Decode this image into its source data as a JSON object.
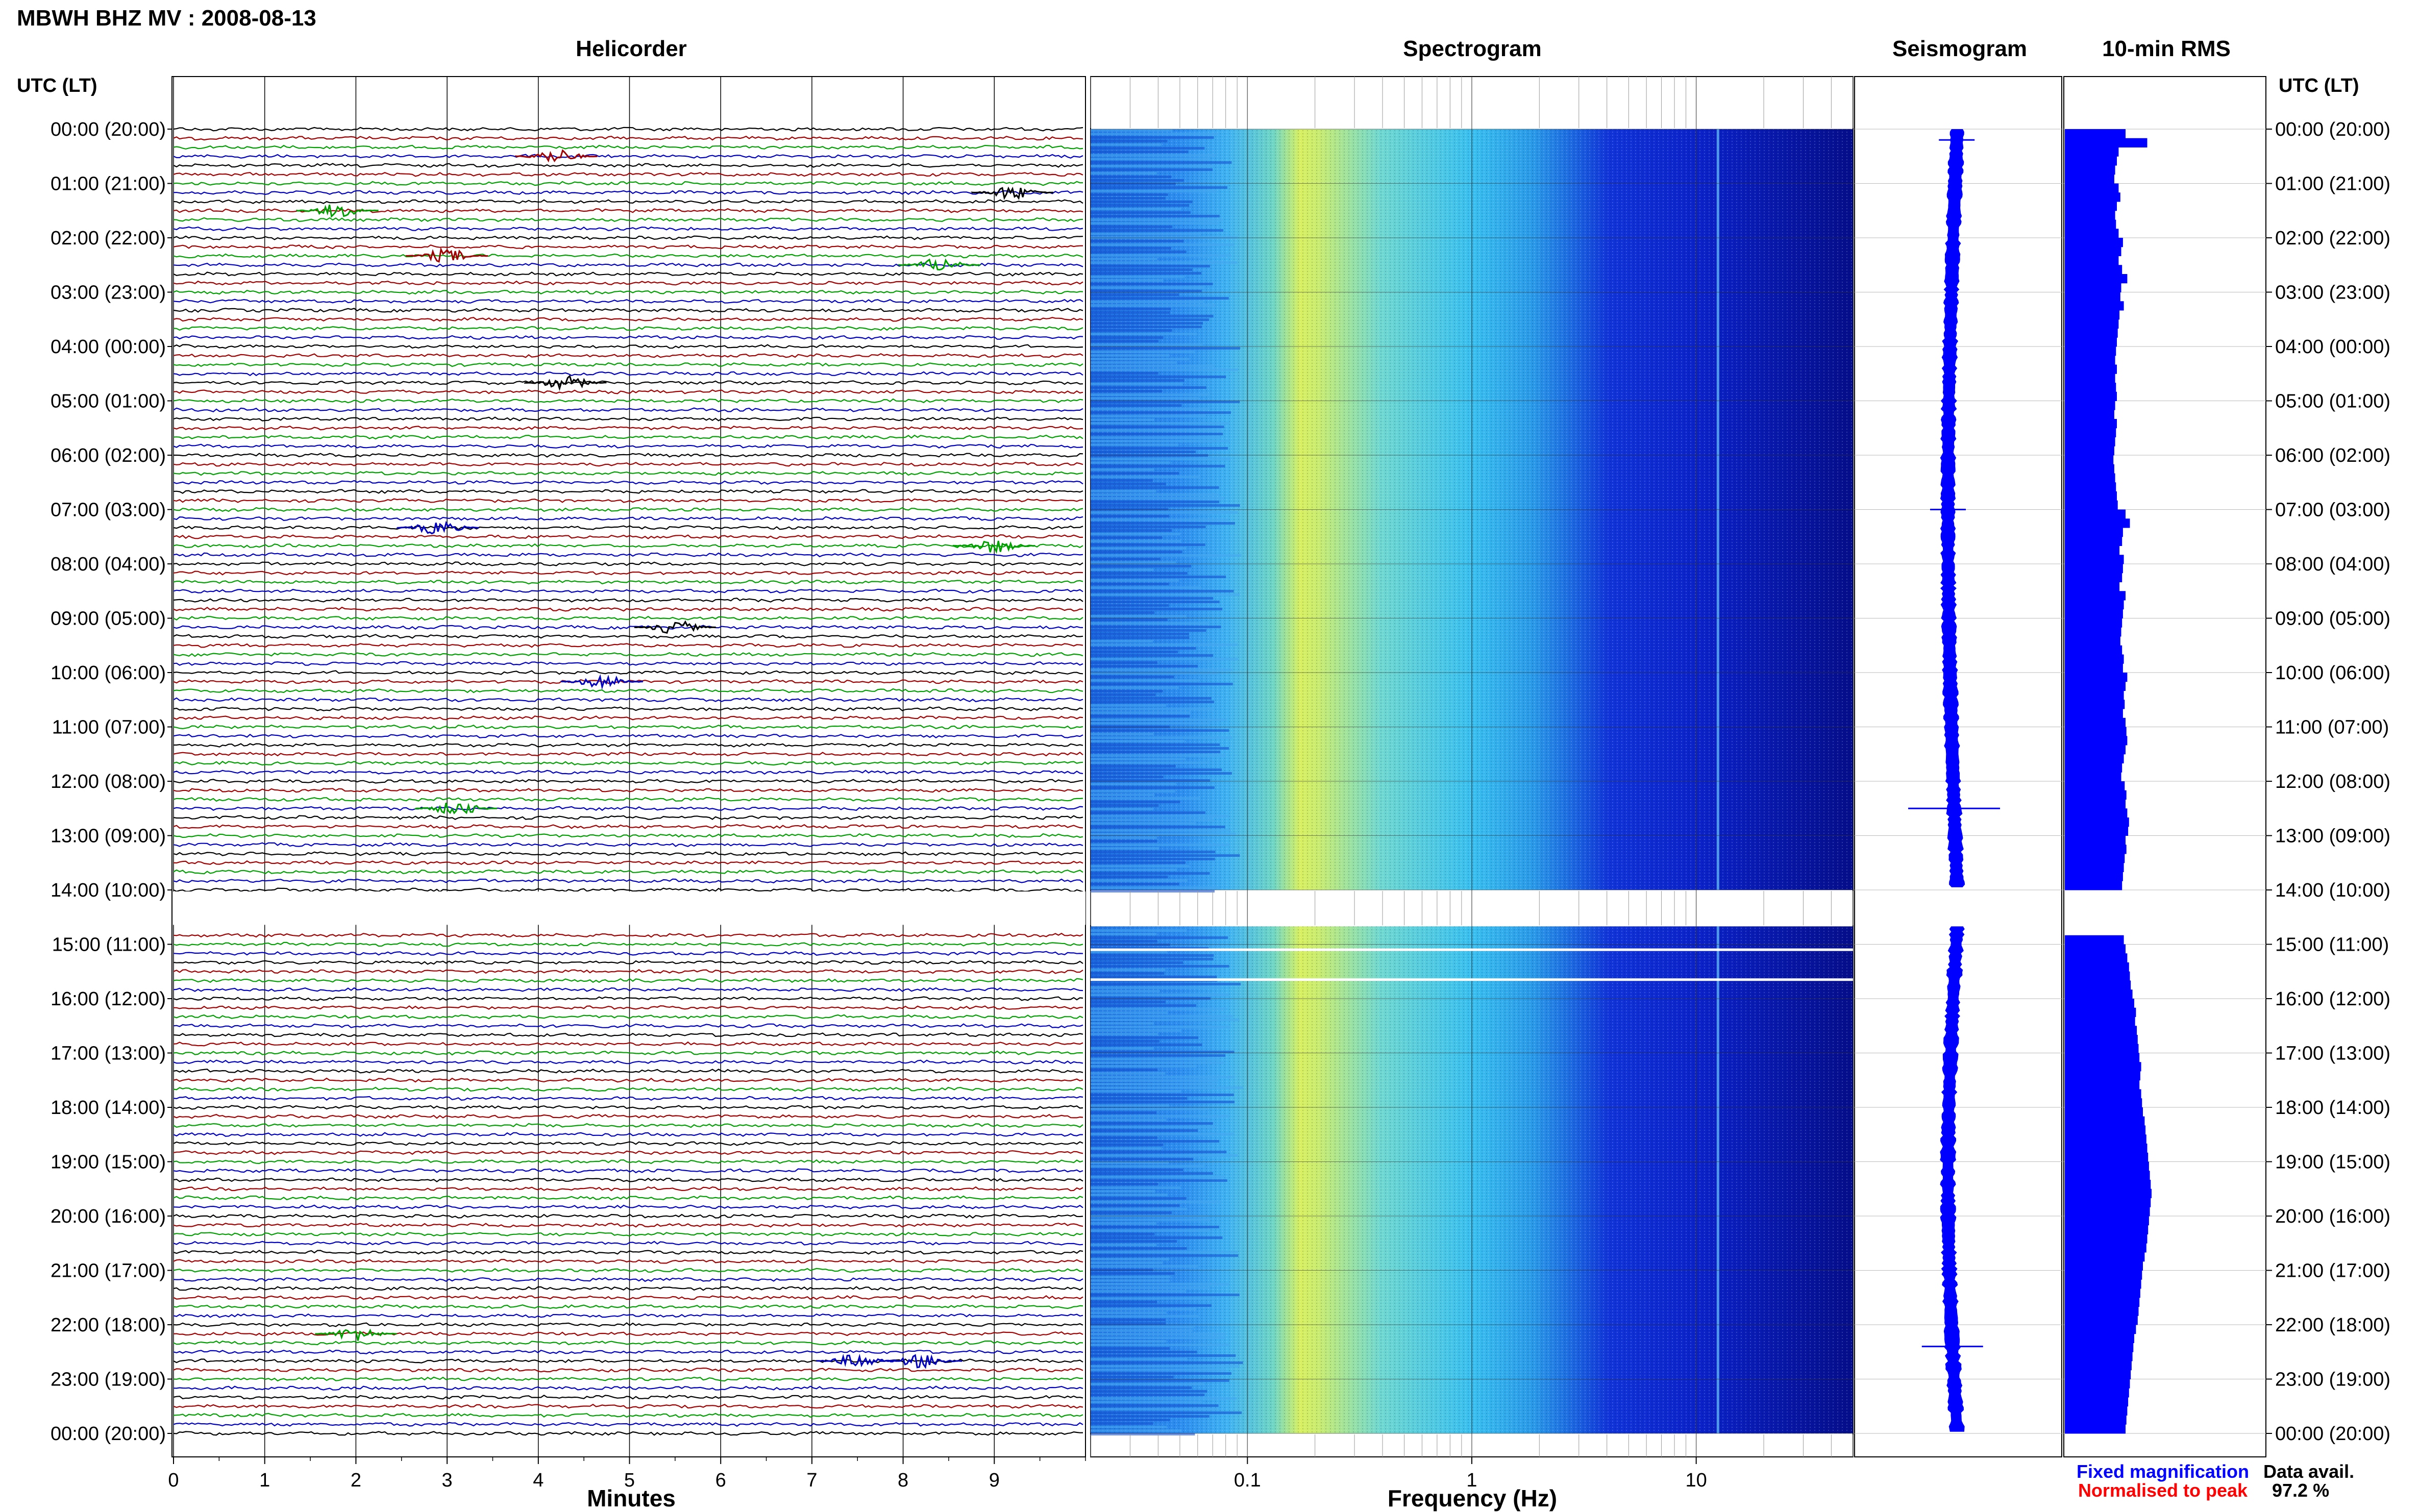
{
  "header": {
    "title": "MBWH BHZ MV : 2008-08-13",
    "utc_label_left": "UTC (LT)",
    "utc_label_right": "UTC (LT)"
  },
  "panels": {
    "helicorder": "Helicorder",
    "spectrogram": "Spectrogram",
    "seismogram": "Seismogram",
    "rms": "10-min RMS"
  },
  "time_labels": [
    "00:00 (20:00)",
    "01:00 (21:00)",
    "02:00 (22:00)",
    "03:00 (23:00)",
    "04:00 (00:00)",
    "05:00 (01:00)",
    "06:00 (02:00)",
    "07:00 (03:00)",
    "08:00 (04:00)",
    "09:00 (05:00)",
    "10:00 (06:00)",
    "11:00 (07:00)",
    "12:00 (08:00)",
    "13:00 (09:00)",
    "14:00 (10:00)",
    "15:00 (11:00)",
    "16:00 (12:00)",
    "17:00 (13:00)",
    "18:00 (14:00)",
    "19:00 (15:00)",
    "20:00 (16:00)",
    "21:00 (17:00)",
    "22:00 (18:00)",
    "23:00 (19:00)",
    "00:00 (20:00)"
  ],
  "legend": {
    "fixed": "Fixed magnification",
    "normalised": "Normalised to peak",
    "fixed_color": "#0000ff",
    "normalised_color": "#ff0000"
  },
  "availability": {
    "label": "Data avail.",
    "value": "97.2 %"
  },
  "chart_data": [
    {
      "type": "line",
      "title": "Helicorder",
      "xlabel": "Minutes",
      "xlim": [
        0,
        10
      ],
      "x_ticks": [
        "0",
        "1",
        "2",
        "3",
        "4",
        "5",
        "6",
        "7",
        "8",
        "9"
      ],
      "rows_per_hour": 6,
      "row_minutes": 10,
      "trace_colors": [
        "#000000",
        "#a00000",
        "#00a000",
        "#0000c0"
      ],
      "gap_hours": [
        14,
        14.67
      ],
      "events": [
        {
          "hour": 0,
          "minute": 4.2,
          "color_index": 1
        },
        {
          "hour": 1,
          "minute": 1.8,
          "color_index": 2
        },
        {
          "hour": 1,
          "minute": 9.2,
          "color_index": 0
        },
        {
          "hour": 2,
          "minute": 8.4,
          "color_index": 2
        },
        {
          "hour": 2,
          "minute": 3.0,
          "color_index": 1
        },
        {
          "hour": 4,
          "minute": 4.3,
          "color_index": 0
        },
        {
          "hour": 7,
          "minute": 2.9,
          "color_index": 3
        },
        {
          "hour": 7,
          "minute": 9.0,
          "color_index": 2
        },
        {
          "hour": 9,
          "minute": 5.5,
          "color_index": 0
        },
        {
          "hour": 10,
          "minute": 4.7,
          "color_index": 3
        },
        {
          "hour": 12,
          "minute": 3.1,
          "color_index": 2
        },
        {
          "hour": 22,
          "minute": 7.5,
          "color_index": 3
        },
        {
          "hour": 22,
          "minute": 8.2,
          "color_index": 3
        },
        {
          "hour": 22,
          "minute": 2.0,
          "color_index": 2
        }
      ]
    },
    {
      "type": "heatmap",
      "title": "Spectrogram",
      "xlabel": "Frequency (Hz)",
      "x_scale": "log",
      "xlim": [
        0.02,
        50
      ],
      "x_ticks": [
        "0.1",
        "1",
        "10"
      ],
      "y_hours": [
        0,
        24
      ],
      "peak_frequency_hz": 0.25,
      "spectral_lines_hz": [
        12.5
      ],
      "gap_hours": [
        14,
        14.67
      ]
    },
    {
      "type": "line",
      "title": "Seismogram",
      "color": "#0000ff",
      "y_hours": [
        0,
        24
      ],
      "events_hour": [
        0.2,
        7.0,
        12.5,
        22.4
      ]
    },
    {
      "type": "bar",
      "title": "10-min RMS",
      "color": "#0000ff",
      "interval_minutes": 10,
      "y_hours": [
        0,
        24
      ],
      "gap_hours": [
        14,
        14.67
      ],
      "relative_values": [
        0.7,
        0.95,
        0.62,
        0.6,
        0.58,
        0.57,
        0.62,
        0.64,
        0.6,
        0.58,
        0.59,
        0.62,
        0.67,
        0.65,
        0.62,
        0.66,
        0.72,
        0.65,
        0.64,
        0.68,
        0.63,
        0.62,
        0.61,
        0.6,
        0.59,
        0.58,
        0.6,
        0.58,
        0.59,
        0.6,
        0.58,
        0.57,
        0.6,
        0.59,
        0.58,
        0.57,
        0.56,
        0.57,
        0.58,
        0.59,
        0.6,
        0.61,
        0.7,
        0.75,
        0.67,
        0.66,
        0.63,
        0.68,
        0.67,
        0.66,
        0.63,
        0.7,
        0.68,
        0.67,
        0.66,
        0.65,
        0.64,
        0.66,
        0.68,
        0.67,
        0.72,
        0.7,
        0.68,
        0.69,
        0.67,
        0.7,
        0.71,
        0.72,
        0.7,
        0.68,
        0.66,
        0.65,
        0.69,
        0.71,
        0.7,
        0.72,
        0.74,
        0.73,
        0.7,
        0.71,
        0.69,
        0.68,
        0.67,
        0.66,
        0.65,
        0.64,
        0.63,
        0.64,
        0.66,
        0.68,
        0.7,
        0.72,
        0.74,
        0.75,
        0.76,
        0.78,
        0.8,
        0.82,
        0.81,
        0.83,
        0.84,
        0.85,
        0.86,
        0.88,
        0.87,
        0.86,
        0.88,
        0.89,
        0.9,
        0.92,
        0.93,
        0.94,
        0.95,
        0.96,
        0.97,
        0.98,
        0.99,
        1.0,
        0.99,
        0.98,
        0.97,
        0.96,
        0.95,
        0.94,
        0.92,
        0.9,
        0.89,
        0.88,
        0.87,
        0.86,
        0.85,
        0.84,
        0.82,
        0.8,
        0.79,
        0.78,
        0.77,
        0.76,
        0.75,
        0.74,
        0.73,
        0.72,
        0.71
      ]
    }
  ]
}
